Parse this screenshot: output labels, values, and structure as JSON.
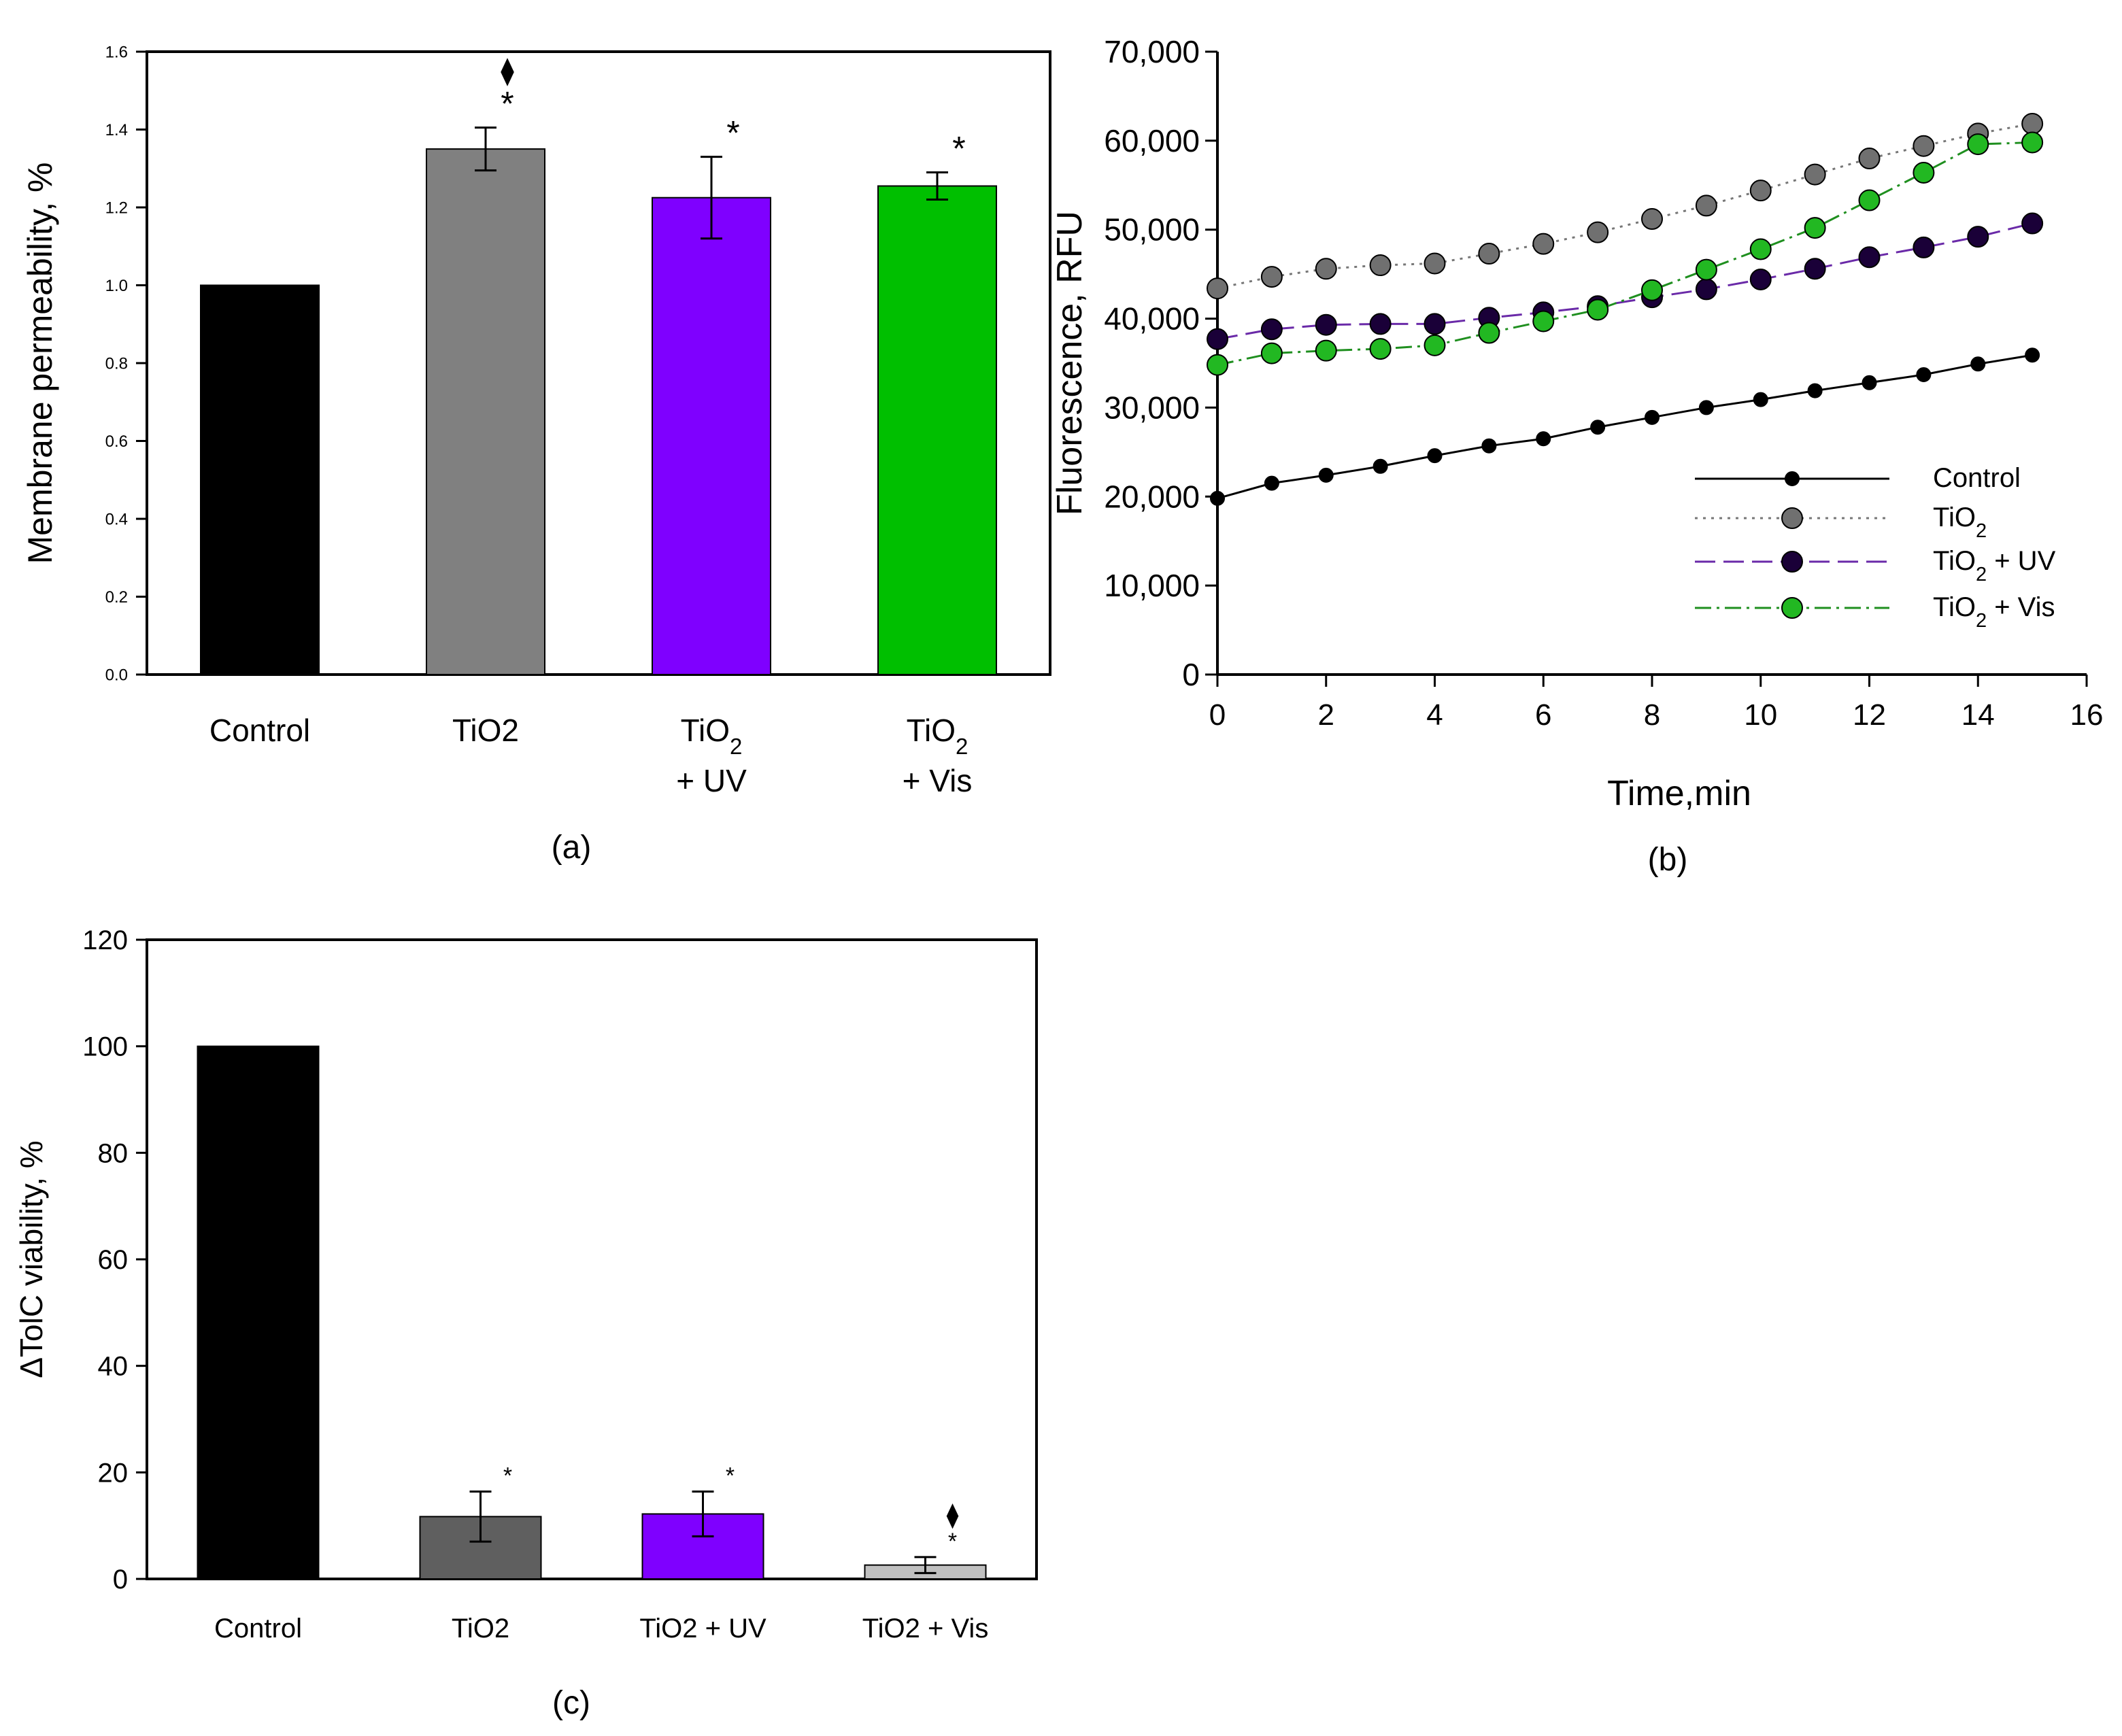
{
  "chart_data": [
    {
      "id": "a",
      "type": "bar",
      "panel_label": "(a)",
      "ylabel": "Membrane permeability, %",
      "xlabel": "",
      "ylim": [
        0,
        1.6
      ],
      "yticks": [
        "0.0",
        "0.2",
        "0.4",
        "0.6",
        "0.8",
        "1.0",
        "1.2",
        "1.4",
        "1.6"
      ],
      "categories": [
        {
          "main": "Control",
          "sub": "",
          "line2": ""
        },
        {
          "main": "TiO2",
          "sub": "",
          "line2": ""
        },
        {
          "main": "TiO",
          "sub": "2",
          "line2": "+ UV"
        },
        {
          "main": "TiO",
          "sub": "2",
          "line2": "+ Vis"
        }
      ],
      "values": [
        1.0,
        1.35,
        1.225,
        1.255
      ],
      "errors": [
        0,
        0.055,
        0.105,
        0.035
      ],
      "colors": [
        "#000000",
        "#808080",
        "#7f00ff",
        "#00bf00"
      ],
      "marks": [
        "",
        "*",
        "*",
        "*"
      ],
      "diamonds": [
        "",
        "⧫",
        "",
        ""
      ]
    },
    {
      "id": "b",
      "type": "line",
      "panel_label": "(b)",
      "xlabel": "Time,min",
      "ylabel": "Fluorescence, RFU",
      "xlim": [
        0,
        16
      ],
      "ylim": [
        0,
        70000
      ],
      "xticks": [
        "0",
        "2",
        "4",
        "6",
        "8",
        "10",
        "12",
        "14",
        "16"
      ],
      "yticks": [
        "0",
        "10,000",
        "20,000",
        "30,000",
        "40,000",
        "50,000",
        "60,000",
        "70,000"
      ],
      "x": [
        0,
        1,
        2,
        3,
        4,
        5,
        6,
        7,
        8,
        9,
        10,
        11,
        12,
        13,
        14,
        15
      ],
      "legend_position": "lower-right",
      "series": [
        {
          "name": "Control",
          "legend_main": "Control",
          "legend_sub": "",
          "legend_suffix": "",
          "line_color": "#000000",
          "marker_fill": "#000000",
          "marker": "small",
          "dash": "",
          "values": [
            19800,
            21500,
            22400,
            23400,
            24600,
            25700,
            26500,
            27800,
            28900,
            30000,
            30900,
            31900,
            32800,
            33700,
            34900,
            35900
          ]
        },
        {
          "name": "TiO2",
          "legend_main": "TiO",
          "legend_sub": "2",
          "legend_suffix": "",
          "line_color": "#777777",
          "marker_fill": "#707070",
          "marker": "large",
          "dash": "4,8",
          "values": [
            43400,
            44700,
            45600,
            46000,
            46200,
            47300,
            48400,
            49700,
            51200,
            52700,
            54400,
            56200,
            58000,
            59400,
            60800,
            61900
          ]
        },
        {
          "name": "TiO2 + UV",
          "legend_main": "TiO",
          "legend_sub": "2",
          "legend_suffix": " + UV",
          "line_color": "#6a2aa8",
          "marker_fill": "#1a0038",
          "marker": "large",
          "dash": "30,12",
          "values": [
            37700,
            38800,
            39300,
            39400,
            39400,
            40100,
            40700,
            41400,
            42400,
            43300,
            44400,
            45600,
            46900,
            48000,
            49200,
            50700
          ]
        },
        {
          "name": "TiO2 + Vis",
          "legend_main": "TiO",
          "legend_sub": "2",
          "legend_suffix": " + Vis",
          "line_color": "#1f8f1f",
          "marker_fill": "#22b822",
          "marker": "large",
          "dash": "24,8,4,8",
          "values": [
            34800,
            36100,
            36400,
            36600,
            37000,
            38400,
            39700,
            41000,
            43200,
            45500,
            47800,
            50200,
            53300,
            56400,
            59600,
            59800
          ]
        }
      ]
    },
    {
      "id": "c",
      "type": "bar",
      "panel_label": "(c)",
      "ylabel": "ΔTolC viability, %",
      "xlabel": "",
      "ylim": [
        0,
        120
      ],
      "yticks": [
        "0",
        "20",
        "40",
        "60",
        "80",
        "100",
        "120"
      ],
      "categories": [
        {
          "main": "Control",
          "sub": "",
          "line2": ""
        },
        {
          "main": "TiO2",
          "sub": "",
          "line2": ""
        },
        {
          "main": "TiO2 + UV",
          "sub": "",
          "line2": ""
        },
        {
          "main": "TiO2 + Vis",
          "sub": "",
          "line2": ""
        }
      ],
      "values": [
        100,
        11.7,
        12.2,
        2.6
      ],
      "errors": [
        0,
        4.7,
        4.2,
        1.5
      ],
      "colors": [
        "#000000",
        "#5f5f5f",
        "#7f00ff",
        "#c0c0c0"
      ],
      "marks": [
        "",
        "*",
        "*",
        "*"
      ],
      "diamonds": [
        "",
        "",
        "",
        "⧫"
      ]
    }
  ]
}
